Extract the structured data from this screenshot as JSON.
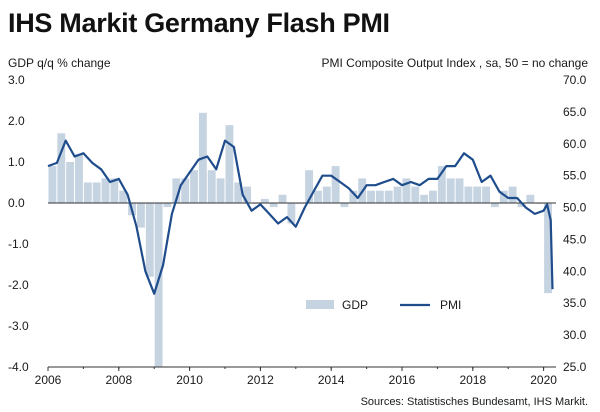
{
  "title": "IHS Markit Germany Flash PMI",
  "source": "Sources: Statistisches Bundesamt, IHS Markit.",
  "colors": {
    "gdp": "#c6d3e1",
    "pmi": "#1f4d8c",
    "axis": "#333333"
  },
  "chart_data": {
    "type": "bar+line",
    "left_axis_label": "GDP q/q % change",
    "right_axis_label": "PMI Composite Output Index , sa, 50 = no change",
    "left_ylim": [
      -4.0,
      3.0
    ],
    "right_ylim": [
      25.0,
      70.0
    ],
    "left_ticks": [
      "3.0",
      "2.0",
      "1.0",
      "0.0",
      "-1.0",
      "-2.0",
      "-3.0",
      "-4.0"
    ],
    "right_ticks": [
      "70.0",
      "65.0",
      "60.0",
      "55.0",
      "50.0",
      "45.0",
      "40.0",
      "35.0",
      "30.0",
      "25.0"
    ],
    "x_range": [
      2006.0,
      2020.35
    ],
    "x_ticks": [
      "2006",
      "2008",
      "2010",
      "2012",
      "2014",
      "2016",
      "2018",
      "2020"
    ],
    "legend": [
      {
        "label": "GDP",
        "type": "bar"
      },
      {
        "label": "PMI",
        "type": "line"
      }
    ],
    "gdp": {
      "name": "GDP",
      "quarter_starts": [
        2006.0,
        2006.25,
        2006.5,
        2006.75,
        2007.0,
        2007.25,
        2007.5,
        2007.75,
        2008.0,
        2008.25,
        2008.5,
        2008.75,
        2009.0,
        2009.25,
        2009.5,
        2009.75,
        2010.0,
        2010.25,
        2010.5,
        2010.75,
        2011.0,
        2011.25,
        2011.5,
        2011.75,
        2012.0,
        2012.25,
        2012.5,
        2012.75,
        2013.0,
        2013.25,
        2013.5,
        2013.75,
        2014.0,
        2014.25,
        2014.5,
        2014.75,
        2015.0,
        2015.25,
        2015.5,
        2015.75,
        2016.0,
        2016.25,
        2016.5,
        2016.75,
        2017.0,
        2017.25,
        2017.5,
        2017.75,
        2018.0,
        2018.25,
        2018.5,
        2018.75,
        2019.0,
        2019.25,
        2019.5,
        2019.75,
        2020.0
      ],
      "values": [
        0.9,
        1.7,
        1.0,
        1.2,
        0.5,
        0.5,
        0.6,
        0.6,
        0.3,
        -0.3,
        -0.6,
        -1.8,
        -4.0,
        -0.1,
        0.6,
        0.6,
        0.8,
        2.2,
        0.8,
        0.6,
        1.9,
        0.5,
        0.4,
        0.0,
        0.1,
        -0.1,
        0.2,
        -0.5,
        0.0,
        0.8,
        0.3,
        0.4,
        0.9,
        -0.1,
        0.3,
        0.6,
        0.3,
        0.3,
        0.3,
        0.4,
        0.6,
        0.4,
        0.2,
        0.3,
        0.9,
        0.6,
        0.6,
        0.4,
        0.4,
        0.4,
        -0.1,
        0.3,
        0.4,
        -0.1,
        0.2,
        0.0,
        -2.2
      ]
    },
    "pmi": {
      "name": "PMI",
      "x": [
        2006.0,
        2006.25,
        2006.5,
        2006.75,
        2007.0,
        2007.25,
        2007.5,
        2007.75,
        2008.0,
        2008.25,
        2008.5,
        2008.75,
        2009.0,
        2009.25,
        2009.5,
        2009.75,
        2010.0,
        2010.25,
        2010.5,
        2010.75,
        2011.0,
        2011.25,
        2011.5,
        2011.75,
        2012.0,
        2012.25,
        2012.5,
        2012.75,
        2013.0,
        2013.25,
        2013.5,
        2013.75,
        2014.0,
        2014.25,
        2014.5,
        2014.75,
        2015.0,
        2015.25,
        2015.5,
        2015.75,
        2016.0,
        2016.25,
        2016.5,
        2016.75,
        2017.0,
        2017.25,
        2017.5,
        2017.75,
        2018.0,
        2018.25,
        2018.5,
        2018.75,
        2019.0,
        2019.25,
        2019.5,
        2019.75,
        2020.0,
        2020.1,
        2020.2,
        2020.25
      ],
      "values": [
        56.5,
        57.0,
        60.5,
        58.0,
        58.5,
        57.0,
        56.0,
        54.0,
        54.5,
        52.0,
        47.0,
        40.0,
        36.5,
        41.0,
        49.0,
        53.5,
        55.5,
        57.5,
        58.0,
        56.0,
        60.5,
        59.5,
        52.0,
        49.5,
        50.5,
        49.0,
        47.5,
        48.5,
        47.0,
        50.0,
        52.5,
        55.0,
        55.0,
        54.0,
        53.0,
        51.5,
        53.5,
        53.5,
        54.0,
        54.5,
        53.5,
        54.0,
        53.5,
        54.5,
        54.5,
        56.5,
        56.5,
        58.5,
        57.5,
        54.0,
        55.0,
        52.5,
        51.5,
        51.5,
        50.0,
        49.0,
        49.5,
        50.5,
        48.0,
        37.2
      ]
    }
  }
}
